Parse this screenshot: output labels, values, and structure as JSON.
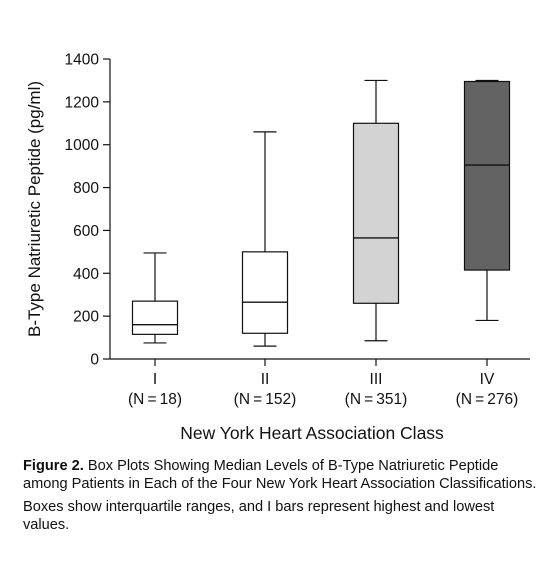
{
  "colors": {
    "axis": "#111111",
    "box_I": "#ffffff",
    "box_II": "#ffffff",
    "box_III": "#d3d3d3",
    "box_IV": "#636363",
    "stroke": "#111111"
  },
  "chart_data": {
    "type": "box",
    "title": "",
    "ylabel": "B-Type Natriuretic Peptide (pg/ml)",
    "xlabel": "New York Heart Association Class",
    "ylim": [
      0,
      1400
    ],
    "yticks": [
      0,
      200,
      400,
      600,
      800,
      1000,
      1200,
      1400
    ],
    "categories": [
      {
        "label": "I",
        "n_label": "(N = 18)",
        "min": 75,
        "q1": 115,
        "median": 160,
        "q3": 270,
        "max": 495
      },
      {
        "label": "II",
        "n_label": "(N = 152)",
        "min": 60,
        "q1": 120,
        "median": 265,
        "q3": 500,
        "max": 1060
      },
      {
        "label": "III",
        "n_label": "(N = 351)",
        "min": 85,
        "q1": 260,
        "median": 565,
        "q3": 1100,
        "max": 1300
      },
      {
        "label": "IV",
        "n_label": "(N = 276)",
        "min": 180,
        "q1": 415,
        "median": 905,
        "q3": 1295,
        "max": 1300
      }
    ],
    "grid": false,
    "legend": "none"
  },
  "caption": {
    "figure_label": "Figure 2.",
    "figure_text": " Box Plots Showing Median Levels of B-Type Natriuret­ic Peptide among Patients in Each of the Four New York Heart Association Classifications.",
    "note": "Boxes show interquartile ranges, and I bars represent highest and lowest values."
  }
}
